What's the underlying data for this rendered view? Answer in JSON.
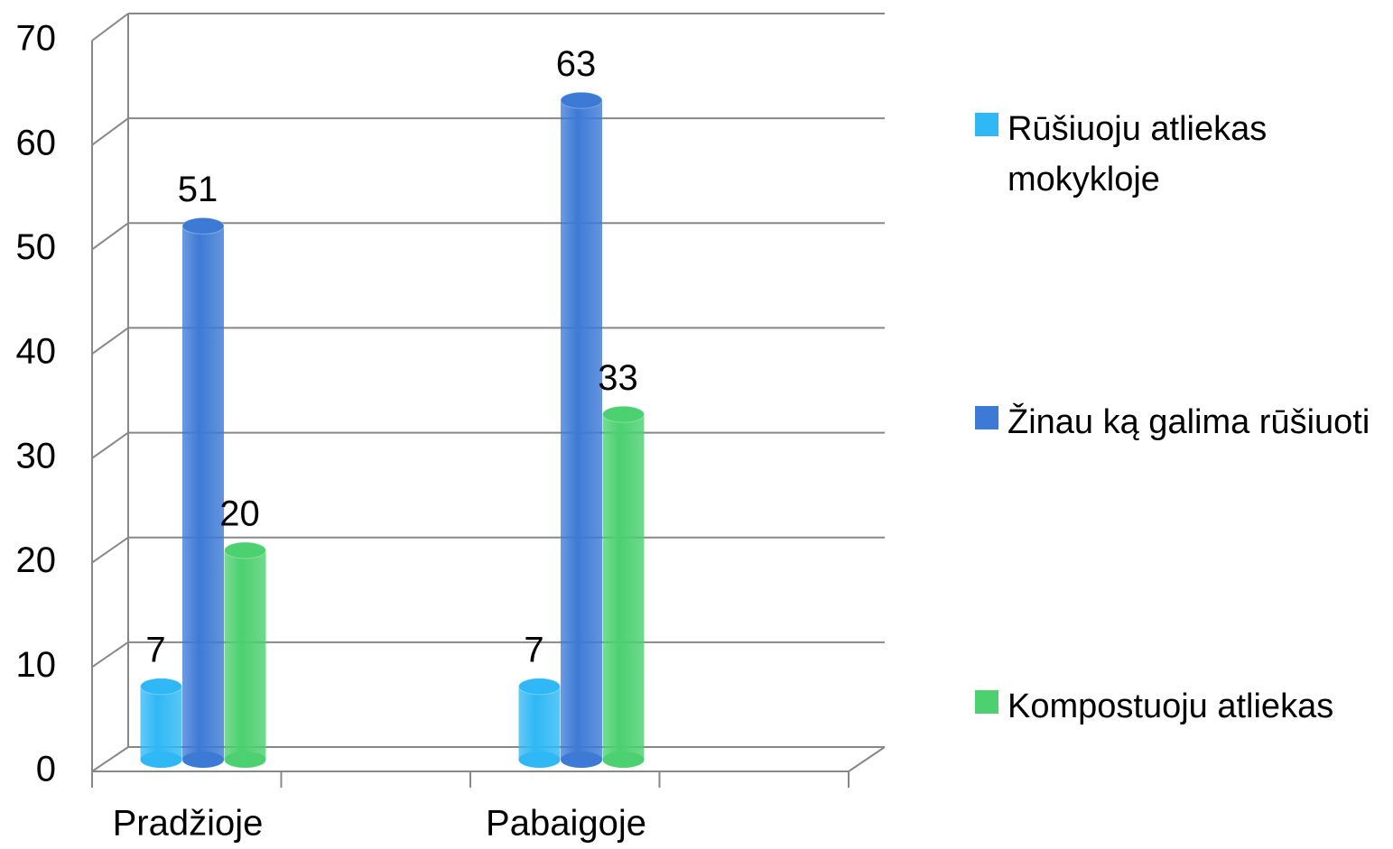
{
  "chart_data": {
    "type": "bar",
    "categories": [
      "Pradžioje",
      "Pabaigoje"
    ],
    "series": [
      {
        "name": "Rūšiuoju atliekas mokykloje",
        "color": "#2fb8f5",
        "values": [
          7,
          7
        ]
      },
      {
        "name": "Žinau ką galima rūšiuoti",
        "color": "#3d7ad6",
        "values": [
          51,
          63
        ]
      },
      {
        "name": "Kompostuoju atliekas",
        "color": "#4cd070",
        "values": [
          20,
          33
        ]
      }
    ],
    "ylim": [
      0,
      70
    ],
    "yticks": [
      0,
      10,
      20,
      30,
      40,
      50,
      60,
      70
    ],
    "grid": true,
    "legend": "right"
  }
}
